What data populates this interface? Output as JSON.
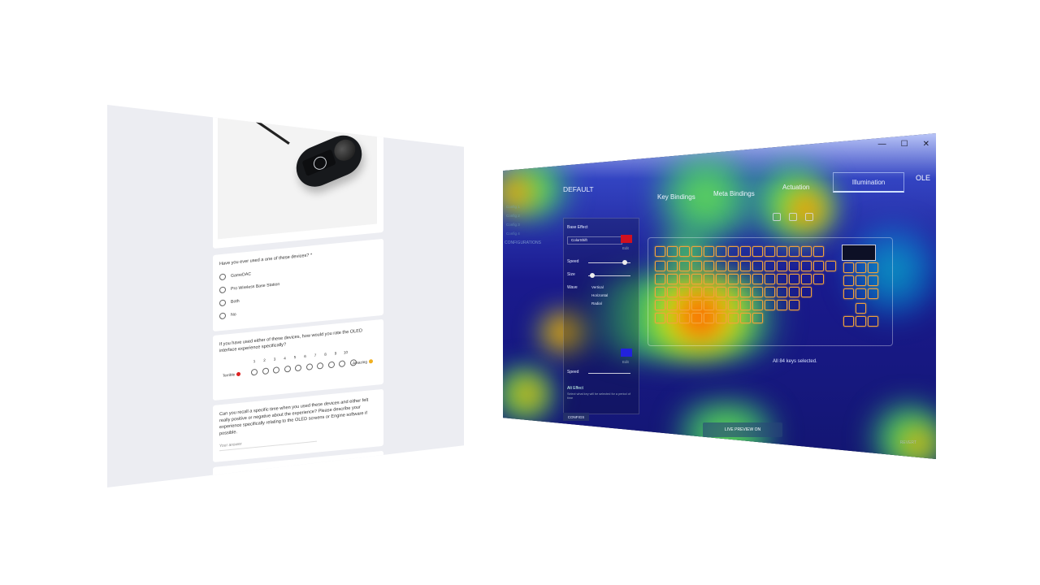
{
  "survey": {
    "q1": "Have you ever used a one of these devices? *",
    "q1_options": [
      "GameDAC",
      "Pro Wireless Base Station",
      "Both",
      "No"
    ],
    "q2": "If you have used either of these devices, how would you rate the OLED interface experience specifically?",
    "scale": [
      "1",
      "2",
      "3",
      "4",
      "5",
      "6",
      "7",
      "8",
      "9",
      "10"
    ],
    "scale_min": "Terrible",
    "scale_max": "Amazing",
    "q3": "Can you recall a specific time when you used these devices and either felt really positive or negative about the experience? Please describe your experience specifically relating to the OLED screens or Engine software if possible.",
    "answer_placeholder": "Your answer"
  },
  "app": {
    "nav_default": "DEFAULT",
    "tabs": [
      "Key Bindings",
      "Meta Bindings",
      "Actuation",
      "Illumination",
      "OLE"
    ],
    "base_effect": "Base Effect",
    "effect_name": "ColorShift",
    "edit": "Edit",
    "speed": "Speed",
    "size": "Size",
    "wave": "Wave",
    "wave_options": [
      "Vertical",
      "Horizontal",
      "Radial"
    ],
    "alt_effect": "Alt Effect",
    "alt_desc": "Select what key will be selected for a period of time",
    "keys_selected": "All 84 keys selected.",
    "configs": "CONFIGS",
    "live_preview": "LIVE PREVIEW ON",
    "revert": "REVERT",
    "side_items": [
      "Config 1",
      "Config 2",
      "Config 3",
      "Config 4"
    ],
    "side_configs": "CONFIGURATIONS",
    "window_controls": [
      "—",
      "☐",
      "✕"
    ],
    "colors": {
      "effect_swatch": "#d01020",
      "alt_swatch": "#2222dd",
      "key_glow": "#f2a33a"
    }
  }
}
